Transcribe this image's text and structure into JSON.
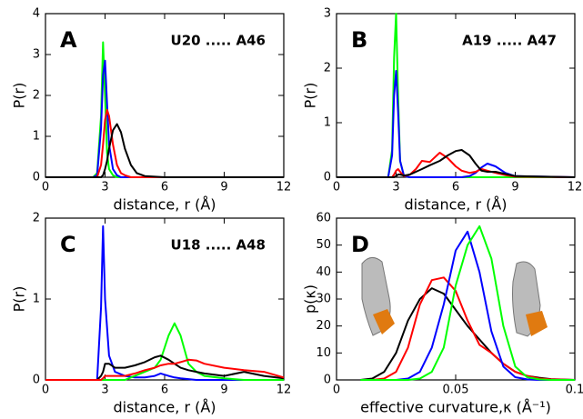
{
  "chart_data": [
    {
      "type": "line",
      "panel_label": "A",
      "annotation": "U20 ..... A46",
      "xlabel": "distance, r (Å)",
      "ylabel": "P(r)",
      "x": [
        0,
        2.4,
        2.6,
        2.8,
        2.9,
        3.0,
        3.1,
        3.2,
        3.4,
        3.6,
        3.8,
        4.0,
        4.3,
        4.6,
        5,
        6,
        12
      ],
      "series": [
        {
          "color": "#00ff00",
          "values": [
            0,
            0,
            0.1,
            1.5,
            3.3,
            2.0,
            0.6,
            0.2,
            0.05,
            0,
            0,
            0,
            0,
            0,
            0,
            0,
            0
          ]
        },
        {
          "color": "#0000ff",
          "values": [
            0,
            0,
            0.05,
            1.2,
            2.5,
            2.85,
            1.8,
            0.8,
            0.2,
            0.05,
            0,
            0,
            0,
            0,
            0,
            0,
            0
          ]
        },
        {
          "color": "#ff0000",
          "values": [
            0,
            0,
            0,
            0.3,
            0.8,
            1.4,
            1.65,
            1.5,
            0.8,
            0.3,
            0.1,
            0.05,
            0,
            0,
            0,
            0,
            0
          ]
        },
        {
          "color": "#000000",
          "values": [
            0,
            0,
            0,
            0,
            0.05,
            0.2,
            0.4,
            0.7,
            1.15,
            1.3,
            1.1,
            0.7,
            0.3,
            0.1,
            0.03,
            0,
            0
          ]
        }
      ],
      "xlim": [
        0,
        12
      ],
      "xticks": [
        0,
        3,
        6,
        9,
        12
      ],
      "ylim": [
        0,
        4
      ],
      "yticks": [
        0,
        1,
        2,
        3,
        4
      ]
    },
    {
      "type": "line",
      "panel_label": "B",
      "annotation": "A19 ..... A47",
      "xlabel": "distance, r (Å)",
      "ylabel": "P(r)",
      "x": [
        0,
        2.6,
        2.8,
        2.9,
        3.0,
        3.1,
        3.2,
        3.4,
        3.7,
        4,
        4.3,
        4.7,
        5.2,
        5.6,
        6,
        6.3,
        6.7,
        7,
        7.3,
        7.6,
        8,
        8.5,
        9,
        12
      ],
      "series": [
        {
          "color": "#00ff00",
          "values": [
            0,
            0,
            0.5,
            2.2,
            3.0,
            1.5,
            0.3,
            0.02,
            0,
            0,
            0,
            0,
            0,
            0,
            0,
            0,
            0,
            0,
            0,
            0,
            0,
            0,
            0,
            0
          ]
        },
        {
          "color": "#0000ff",
          "values": [
            0,
            0,
            0.4,
            1.5,
            1.95,
            1.2,
            0.3,
            0.02,
            0,
            0,
            0,
            0,
            0,
            0,
            0,
            0,
            0.02,
            0.08,
            0.18,
            0.25,
            0.2,
            0.08,
            0.02,
            0
          ]
        },
        {
          "color": "#ff0000",
          "values": [
            0,
            0,
            0,
            0.05,
            0.12,
            0.15,
            0.1,
            0.02,
            0.05,
            0.15,
            0.3,
            0.28,
            0.45,
            0.35,
            0.2,
            0.12,
            0.08,
            0.1,
            0.15,
            0.12,
            0.08,
            0.04,
            0.01,
            0
          ]
        },
        {
          "color": "#000000",
          "values": [
            0,
            0,
            0,
            0,
            0.02,
            0.05,
            0.05,
            0.03,
            0.05,
            0.1,
            0.15,
            0.22,
            0.3,
            0.4,
            0.48,
            0.5,
            0.4,
            0.25,
            0.12,
            0.1,
            0.1,
            0.06,
            0.02,
            0
          ]
        }
      ],
      "xlim": [
        0,
        12
      ],
      "xticks": [
        0,
        3,
        6,
        9,
        12
      ],
      "ylim": [
        0,
        3
      ],
      "yticks": [
        0,
        1,
        2,
        3
      ]
    },
    {
      "type": "line",
      "panel_label": "C",
      "annotation": "U18 ..... A48",
      "xlabel": "distance, r (Å)",
      "ylabel": "P(r)",
      "x": [
        0,
        2.6,
        2.8,
        2.9,
        3.0,
        3.2,
        3.5,
        4,
        4.5,
        5,
        5.5,
        5.8,
        6.2,
        6.5,
        6.8,
        7.2,
        7.6,
        8,
        9,
        10,
        11,
        12
      ],
      "series": [
        {
          "color": "#0000ff",
          "values": [
            0,
            0,
            0.9,
            1.9,
            1.0,
            0.3,
            0.1,
            0.05,
            0.03,
            0.03,
            0.05,
            0.08,
            0.05,
            0.03,
            0.02,
            0.01,
            0,
            0,
            0,
            0,
            0,
            0
          ]
        },
        {
          "color": "#00ff00",
          "values": [
            0,
            0,
            0,
            0,
            0,
            0,
            0,
            0,
            0.05,
            0.1,
            0.15,
            0.25,
            0.55,
            0.7,
            0.55,
            0.2,
            0.1,
            0.05,
            0.02,
            0,
            0,
            0
          ]
        },
        {
          "color": "#000000",
          "values": [
            0,
            0,
            0.05,
            0.1,
            0.2,
            0.2,
            0.15,
            0.15,
            0.18,
            0.22,
            0.28,
            0.3,
            0.25,
            0.2,
            0.15,
            0.12,
            0.1,
            0.08,
            0.05,
            0.1,
            0.05,
            0.02
          ]
        },
        {
          "color": "#ff0000",
          "values": [
            0,
            0,
            0,
            0.02,
            0.05,
            0.05,
            0.05,
            0.05,
            0.08,
            0.12,
            0.15,
            0.18,
            0.2,
            0.2,
            0.22,
            0.25,
            0.24,
            0.2,
            0.15,
            0.12,
            0.1,
            0.03
          ]
        }
      ],
      "xlim": [
        0,
        12
      ],
      "xticks": [
        0,
        3,
        6,
        9,
        12
      ],
      "ylim": [
        0,
        2
      ],
      "yticks": [
        0,
        1,
        2
      ]
    },
    {
      "type": "line",
      "panel_label": "D",
      "xlabel": "effective curvature,κ (Å⁻¹)",
      "ylabel": "p(κ)",
      "x": [
        0.01,
        0.015,
        0.02,
        0.025,
        0.03,
        0.035,
        0.04,
        0.045,
        0.05,
        0.055,
        0.06,
        0.065,
        0.07,
        0.075,
        0.08,
        0.085,
        0.09,
        0.1
      ],
      "series": [
        {
          "color": "#000000",
          "values": [
            0,
            0.5,
            3,
            10,
            22,
            30,
            34,
            32,
            26,
            20,
            15,
            10,
            6,
            3,
            1.5,
            0.8,
            0.3,
            0
          ]
        },
        {
          "color": "#ff0000",
          "values": [
            0,
            0,
            0.5,
            3,
            12,
            28,
            37,
            38,
            33,
            22,
            13,
            10,
            6,
            3,
            1.5,
            0.5,
            0.2,
            0
          ]
        },
        {
          "color": "#0000ff",
          "values": [
            0,
            0,
            0,
            0,
            0.5,
            3,
            12,
            28,
            48,
            55,
            40,
            18,
            5,
            1,
            0.2,
            0,
            0,
            0
          ]
        },
        {
          "color": "#00ff00",
          "values": [
            0,
            0,
            0,
            0,
            0,
            0.5,
            3,
            12,
            35,
            50,
            57,
            45,
            20,
            5,
            1,
            0.2,
            0,
            0
          ]
        }
      ],
      "xlim": [
        0,
        0.1
      ],
      "xticks": [
        0,
        0.05,
        0.1
      ],
      "ylim": [
        0,
        60
      ],
      "yticks": [
        0,
        10,
        20,
        30,
        40,
        50,
        60
      ]
    }
  ]
}
